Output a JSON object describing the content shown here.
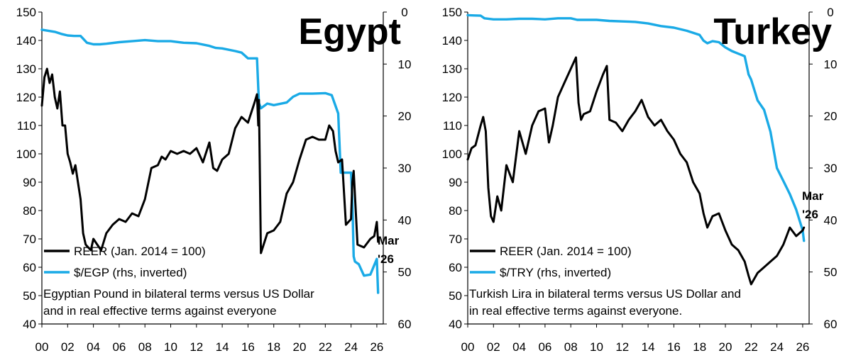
{
  "chart_data": [
    {
      "type": "line",
      "title": "Egypt",
      "end_annotation": [
        "Mar",
        "'26"
      ],
      "x_ticks": [
        "00",
        "02",
        "04",
        "06",
        "08",
        "10",
        "12",
        "14",
        "16",
        "18",
        "20",
        "22",
        "24",
        "26"
      ],
      "xlim": [
        2000,
        2026.5
      ],
      "ylim_left": [
        40,
        150
      ],
      "left_ticks": [
        40,
        50,
        60,
        70,
        80,
        90,
        100,
        110,
        120,
        130,
        140,
        150
      ],
      "ylim_right": [
        0,
        60
      ],
      "right_ticks": [
        0,
        10,
        20,
        30,
        40,
        50,
        60
      ],
      "right_inverted": true,
      "legend": [
        "REER (Jan. 2014 = 100)",
        "$/EGP (rhs, inverted)"
      ],
      "note": [
        "Egyptian Pound in bilateral terms versus US Dollar",
        "and in real effective terms against everyone"
      ],
      "series": [
        {
          "name": "REER (Jan. 2014 = 100)",
          "color": "#000000",
          "axis": "left",
          "x": [
            2000.0,
            2000.2,
            2000.4,
            2000.6,
            2000.8,
            2001.0,
            2001.2,
            2001.4,
            2001.6,
            2001.8,
            2002.0,
            2002.2,
            2002.4,
            2002.6,
            2002.8,
            2003.0,
            2003.2,
            2003.4,
            2003.6,
            2003.8,
            2004.0,
            2004.3,
            2004.6,
            2005.0,
            2005.5,
            2006.0,
            2006.5,
            2007.0,
            2007.5,
            2008.0,
            2008.5,
            2009.0,
            2009.3,
            2009.6,
            2010.0,
            2010.5,
            2011.0,
            2011.5,
            2012.0,
            2012.5,
            2013.0,
            2013.3,
            2013.6,
            2014.0,
            2014.5,
            2015.0,
            2015.5,
            2016.0,
            2016.5,
            2016.7,
            2016.8,
            2016.85,
            2017.0,
            2017.5,
            2018.0,
            2018.5,
            2019.0,
            2019.5,
            2020.0,
            2020.5,
            2021.0,
            2021.5,
            2022.0,
            2022.3,
            2022.6,
            2022.8,
            2023.0,
            2023.3,
            2023.6,
            2024.0,
            2024.1,
            2024.2,
            2024.5,
            2025.0,
            2025.5,
            2025.8,
            2026.0,
            2026.1
          ],
          "values": [
            117,
            127,
            130,
            125,
            128,
            120,
            116,
            122,
            110,
            110,
            100,
            97,
            93,
            96,
            90,
            84,
            72,
            68,
            67,
            66,
            70,
            68,
            66,
            72,
            75,
            77,
            76,
            79,
            78,
            84,
            95,
            96,
            99,
            98,
            101,
            100,
            101,
            100,
            102,
            97,
            104,
            95,
            94,
            98,
            100,
            109,
            113,
            111,
            118,
            121,
            110,
            119,
            65,
            72,
            73,
            76,
            86,
            90,
            98,
            105,
            106,
            105,
            105,
            110,
            108,
            101,
            97,
            98,
            75,
            77,
            90,
            94,
            68,
            67,
            70,
            71,
            76,
            69
          ]
        },
        {
          "name": "$/EGP (rhs, inverted)",
          "color": "#1aaae6",
          "axis": "right",
          "x": [
            2000.0,
            2000.5,
            2001.0,
            2001.5,
            2002.0,
            2002.5,
            2003.0,
            2003.5,
            2004.0,
            2004.5,
            2005.0,
            2006.0,
            2007.0,
            2008.0,
            2009.0,
            2010.0,
            2011.0,
            2012.0,
            2013.0,
            2013.5,
            2014.0,
            2015.0,
            2015.5,
            2016.0,
            2016.7,
            2016.85,
            2017.0,
            2017.5,
            2018.0,
            2019.0,
            2019.5,
            2020.0,
            2021.0,
            2022.0,
            2022.5,
            2023.0,
            2023.2,
            2024.0,
            2024.1,
            2024.2,
            2024.3,
            2024.6,
            2025.0,
            2025.5,
            2026.0,
            2026.1
          ],
          "values": [
            3.4,
            3.6,
            3.8,
            4.2,
            4.5,
            4.6,
            4.6,
            5.9,
            6.2,
            6.2,
            6.1,
            5.8,
            5.6,
            5.4,
            5.6,
            5.6,
            5.9,
            6.0,
            6.5,
            6.9,
            7.0,
            7.5,
            7.8,
            8.9,
            8.9,
            17.5,
            18.5,
            17.6,
            17.9,
            17.4,
            16.3,
            15.7,
            15.7,
            15.6,
            16.0,
            19.5,
            30.9,
            30.9,
            36.0,
            47.0,
            48.0,
            48.5,
            50.7,
            50.5,
            47.5,
            54.0
          ]
        }
      ]
    },
    {
      "type": "line",
      "title": "Turkey",
      "end_annotation": [
        "Mar",
        "'26"
      ],
      "x_ticks": [
        "00",
        "02",
        "04",
        "06",
        "08",
        "10",
        "12",
        "14",
        "16",
        "18",
        "20",
        "22",
        "24",
        "26"
      ],
      "xlim": [
        2000,
        2026.5
      ],
      "ylim_left": [
        40,
        150
      ],
      "left_ticks": [
        40,
        50,
        60,
        70,
        80,
        90,
        100,
        110,
        120,
        130,
        140,
        150
      ],
      "ylim_right": [
        0,
        60
      ],
      "right_ticks": [
        0,
        10,
        20,
        30,
        40,
        50,
        60
      ],
      "right_inverted": true,
      "legend": [
        "REER (Jan. 2014 = 100)",
        "$/TRY (rhs, inverted)"
      ],
      "note": [
        "Turkish Lira in bilateral terms versus US Dollar and",
        "in real effective terms against everyone."
      ],
      "series": [
        {
          "name": "REER (Jan. 2014 = 100)",
          "color": "#000000",
          "axis": "left",
          "x": [
            2000.0,
            2000.3,
            2000.6,
            2001.0,
            2001.2,
            2001.4,
            2001.6,
            2001.8,
            2002.0,
            2002.3,
            2002.6,
            2003.0,
            2003.5,
            2004.0,
            2004.5,
            2005.0,
            2005.5,
            2006.0,
            2006.3,
            2006.6,
            2007.0,
            2007.5,
            2008.0,
            2008.4,
            2008.6,
            2008.8,
            2009.0,
            2009.5,
            2010.0,
            2010.5,
            2010.8,
            2011.0,
            2011.5,
            2012.0,
            2012.5,
            2013.0,
            2013.5,
            2014.0,
            2014.5,
            2015.0,
            2015.5,
            2016.0,
            2016.5,
            2017.0,
            2017.5,
            2018.0,
            2018.3,
            2018.6,
            2019.0,
            2019.5,
            2020.0,
            2020.5,
            2021.0,
            2021.5,
            2021.8,
            2022.0,
            2022.5,
            2023.0,
            2023.5,
            2024.0,
            2024.5,
            2025.0,
            2025.5,
            2026.0,
            2026.1
          ],
          "values": [
            98,
            102,
            103,
            110,
            113,
            108,
            88,
            78,
            76,
            85,
            80,
            96,
            90,
            108,
            100,
            110,
            115,
            116,
            104,
            110,
            120,
            125,
            130,
            134,
            118,
            112,
            114,
            115,
            122,
            128,
            131,
            112,
            111,
            108,
            112,
            115,
            119,
            113,
            110,
            112,
            108,
            105,
            100,
            97,
            90,
            86,
            79,
            74,
            78,
            79,
            73,
            68,
            66,
            62,
            57,
            54,
            58,
            60,
            62,
            64,
            68,
            74,
            71,
            73,
            74
          ]
        },
        {
          "name": "$/TRY (rhs, inverted)",
          "color": "#1aaae6",
          "axis": "right",
          "x": [
            2000.0,
            2000.5,
            2001.0,
            2001.3,
            2002.0,
            2003.0,
            2004.0,
            2005.0,
            2006.0,
            2007.0,
            2008.0,
            2008.5,
            2009.0,
            2010.0,
            2011.0,
            2012.0,
            2013.0,
            2014.0,
            2015.0,
            2016.0,
            2017.0,
            2018.0,
            2018.3,
            2018.6,
            2019.0,
            2019.5,
            2020.0,
            2020.5,
            2021.0,
            2021.5,
            2021.8,
            2022.0,
            2022.5,
            2023.0,
            2023.5,
            2024.0,
            2024.5,
            2025.0,
            2025.5,
            2026.0,
            2026.1
          ],
          "values": [
            0.6,
            0.65,
            0.7,
            1.2,
            1.4,
            1.4,
            1.3,
            1.3,
            1.4,
            1.2,
            1.2,
            1.5,
            1.5,
            1.5,
            1.7,
            1.8,
            1.9,
            2.2,
            2.7,
            3.0,
            3.6,
            4.4,
            5.5,
            6.0,
            5.6,
            5.8,
            6.8,
            7.5,
            8.0,
            8.5,
            12.0,
            13.0,
            17.0,
            18.8,
            23.0,
            30.0,
            32.5,
            35.0,
            38.0,
            42.0,
            44.0
          ]
        }
      ]
    }
  ]
}
